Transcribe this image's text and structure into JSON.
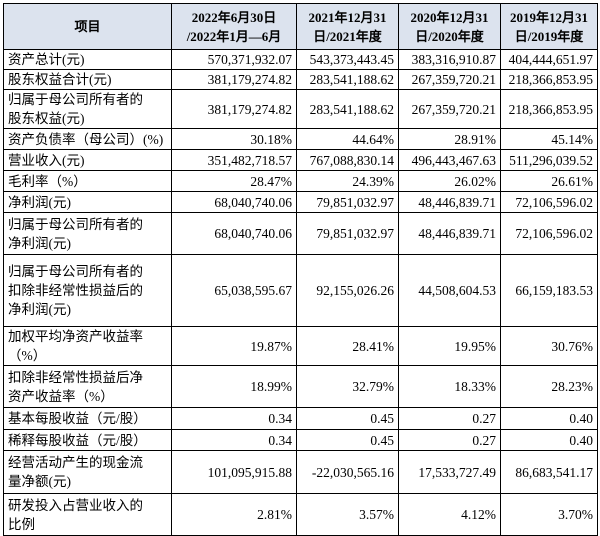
{
  "table": {
    "header": [
      [
        "项目"
      ],
      [
        "2022年6月30日",
        "/2022年1月—6月"
      ],
      [
        "2021年12月31",
        "日/2021年度"
      ],
      [
        "2020年12月31",
        "日/2020年度"
      ],
      [
        "2019年12月31",
        "日/2019年度"
      ]
    ],
    "rows": [
      [
        [
          "资产总计(元)"
        ],
        "570,371,932.07",
        "543,373,443.45",
        "383,316,910.87",
        "404,444,651.97"
      ],
      [
        [
          "股东权益合计(元)"
        ],
        "381,179,274.82",
        "283,541,188.62",
        "267,359,720.21",
        "218,366,853.95"
      ],
      [
        [
          "归属于母公司所有者的",
          "股东权益(元)"
        ],
        "381,179,274.82",
        "283,541,188.62",
        "267,359,720.21",
        "218,366,853.95"
      ],
      [
        [
          "资产负债率（母公司）(%)"
        ],
        "30.18%",
        "44.64%",
        "28.91%",
        "45.14%"
      ],
      [
        [
          "营业收入(元)"
        ],
        "351,482,718.57",
        "767,088,830.14",
        "496,443,467.63",
        "511,296,039.52"
      ],
      [
        [
          "毛利率（%）"
        ],
        "28.47%",
        "24.39%",
        "26.02%",
        "26.61%"
      ],
      [
        [
          "净利润(元)"
        ],
        "68,040,740.06",
        "79,851,032.97",
        "48,446,839.71",
        "72,106,596.02"
      ],
      [
        [
          "归属于母公司所有者的",
          "净利润(元)"
        ],
        "68,040,740.06",
        "79,851,032.97",
        "48,446,839.71",
        "72,106,596.02"
      ],
      [
        [
          "归属于母公司所有者的",
          "扣除非经常性损益后的",
          "净利润(元)"
        ],
        "65,038,595.67",
        "92,155,026.26",
        "44,508,604.53",
        "66,159,183.53"
      ],
      [
        [
          "加权平均净资产收益率",
          "（%）"
        ],
        "19.87%",
        "28.41%",
        "19.95%",
        "30.76%"
      ],
      [
        [
          "扣除非经常性损益后净",
          "资产收益率（%）"
        ],
        "18.99%",
        "32.79%",
        "18.33%",
        "28.23%"
      ],
      [
        [
          "基本每股收益（元/股）"
        ],
        "0.34",
        "0.45",
        "0.27",
        "0.40"
      ],
      [
        [
          "稀释每股收益（元/股）"
        ],
        "0.34",
        "0.45",
        "0.27",
        "0.40"
      ],
      [
        [
          "经营活动产生的现金流",
          "量净额(元)"
        ],
        "101,095,915.88",
        "-22,030,565.16",
        "17,533,727.49",
        "86,683,541.17"
      ],
      [
        [
          "研发投入占营业收入的",
          "比例"
        ],
        "2.81%",
        "3.57%",
        "4.12%",
        "3.70%"
      ]
    ]
  }
}
